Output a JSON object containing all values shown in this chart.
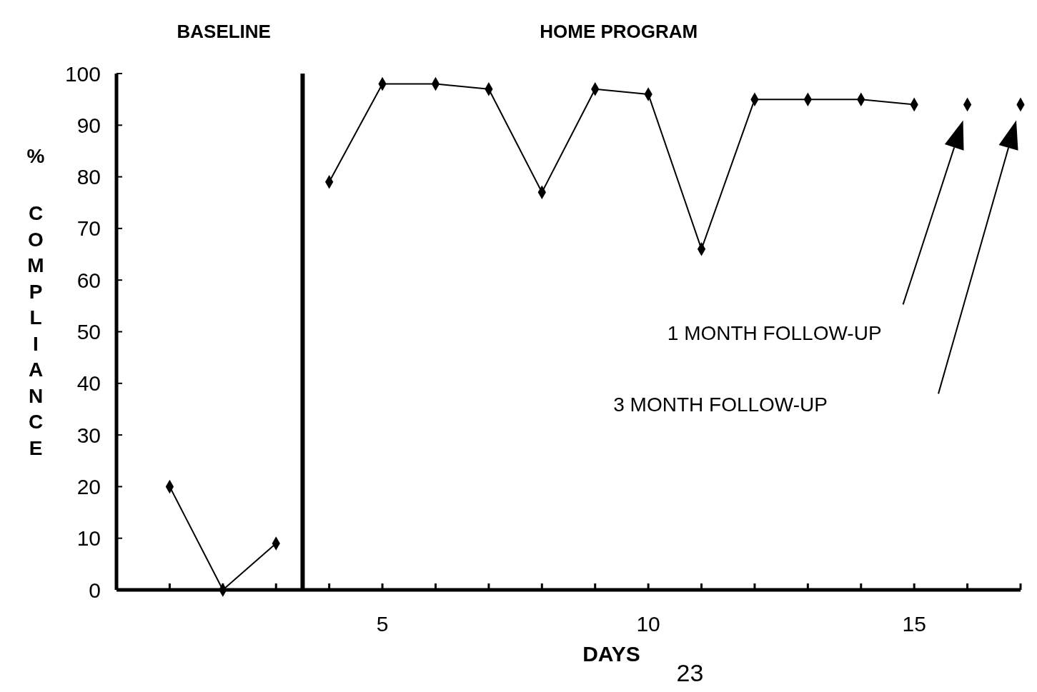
{
  "chart_data": {
    "type": "line",
    "xlabel": "DAYS",
    "ylabel": "% COMPLIANCE",
    "xlim": [
      0,
      17
    ],
    "ylim": [
      0,
      100
    ],
    "xticks": [
      {
        "value": 1,
        "label": null
      },
      {
        "value": 2,
        "label": null
      },
      {
        "value": 3,
        "label": null
      },
      {
        "value": 4,
        "label": null
      },
      5,
      {
        "value": 6,
        "label": null
      },
      {
        "value": 7,
        "label": null
      },
      {
        "value": 8,
        "label": null
      },
      {
        "value": 9,
        "label": null
      },
      10,
      {
        "value": 11,
        "label": null
      },
      {
        "value": 12,
        "label": null
      },
      {
        "value": 13,
        "label": null
      },
      {
        "value": 14,
        "label": null
      },
      15,
      {
        "value": 16,
        "label": null
      },
      {
        "value": 17,
        "label": null
      }
    ],
    "yticks": [
      0,
      10,
      20,
      30,
      40,
      50,
      60,
      70,
      80,
      90,
      100
    ],
    "grid": false,
    "marker": "diamond",
    "line_style": "solid",
    "series": [
      {
        "color": "#000000",
        "x": [
          1,
          2,
          3
        ],
        "values": [
          20,
          0,
          9
        ]
      },
      {
        "color": "#000000",
        "x": [
          4,
          5,
          6,
          7,
          8,
          9,
          10,
          11,
          12,
          13,
          14,
          15
        ],
        "values": [
          79,
          98,
          98,
          97,
          77,
          97,
          96,
          66,
          95,
          95,
          95,
          94
        ]
      },
      {
        "type": "scatter",
        "color": "#000000",
        "x": [
          16,
          17
        ],
        "values": [
          94,
          94
        ]
      }
    ],
    "ref_lines": [
      {
        "axis": "x",
        "value": 3.5,
        "color": "#000000"
      }
    ],
    "annotations": [
      "BASELINE",
      "HOME PROGRAM",
      "1 MONTH FOLLOW-UP",
      "3 MONTH FOLLOW-UP",
      "23"
    ]
  }
}
